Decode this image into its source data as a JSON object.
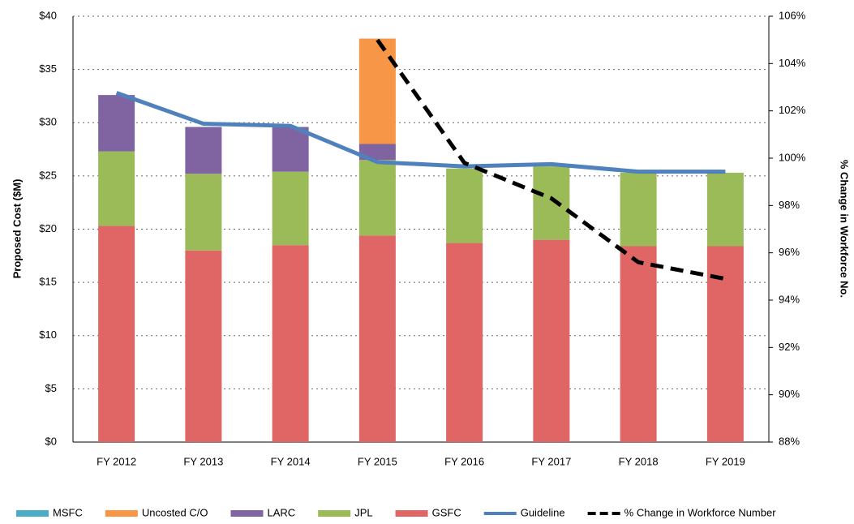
{
  "chart_data": {
    "type": "bar",
    "categories": [
      "FY 2012",
      "FY 2013",
      "FY 2014",
      "FY 2015",
      "FY 2016",
      "FY 2017",
      "FY 2018",
      "FY 2019"
    ],
    "y_label": "Proposed Cost ($M)",
    "y2_label": "% Change in Workforce No.",
    "ylim": [
      0,
      40
    ],
    "yticks": [
      {
        "value": 0,
        "label": "$0"
      },
      {
        "value": 5,
        "label": "$5"
      },
      {
        "value": 10,
        "label": "$10"
      },
      {
        "value": 15,
        "label": "$15"
      },
      {
        "value": 20,
        "label": "$20"
      },
      {
        "value": 25,
        "label": "$25"
      },
      {
        "value": 30,
        "label": "$30"
      },
      {
        "value": 35,
        "label": "$35"
      },
      {
        "value": 40,
        "label": "$40"
      }
    ],
    "y2lim": [
      88,
      106
    ],
    "y2ticks": [
      {
        "value": 88,
        "label": "88%"
      },
      {
        "value": 90,
        "label": "90%"
      },
      {
        "value": 92,
        "label": "92%"
      },
      {
        "value": 94,
        "label": "94%"
      },
      {
        "value": 96,
        "label": "96%"
      },
      {
        "value": 98,
        "label": "98%"
      },
      {
        "value": 100,
        "label": "100%"
      },
      {
        "value": 102,
        "label": "102%"
      },
      {
        "value": 104,
        "label": "104%"
      },
      {
        "value": 106,
        "label": "106%"
      }
    ],
    "grid": true,
    "legend": "bottom",
    "series": [
      {
        "name": "MSFC",
        "kind": "bar",
        "color": "#4bacc6",
        "values": [
          0,
          0,
          0,
          0,
          0,
          0,
          0,
          0
        ]
      },
      {
        "name": "Uncosted C/O",
        "kind": "bar",
        "color": "#f79646",
        "values": [
          0,
          0,
          0,
          9.9,
          0,
          0,
          0,
          0
        ]
      },
      {
        "name": "LARC",
        "kind": "bar",
        "color": "#8064a2",
        "values": [
          5.3,
          4.4,
          4.2,
          1.5,
          0,
          0,
          0,
          0
        ]
      },
      {
        "name": "JPL",
        "kind": "bar",
        "color": "#9bbb59",
        "values": [
          7.0,
          7.2,
          6.9,
          7.1,
          7.0,
          6.9,
          6.9,
          6.9
        ]
      },
      {
        "name": "GSFC",
        "kind": "bar",
        "color": "#e06666",
        "values": [
          20.3,
          18.0,
          18.5,
          19.4,
          18.7,
          19.0,
          18.4,
          18.4
        ]
      },
      {
        "name": "Guideline",
        "kind": "line",
        "color": "#4f81bd",
        "values": [
          32.8,
          29.9,
          29.7,
          26.3,
          25.9,
          26.1,
          25.4,
          25.4
        ]
      },
      {
        "name": "% Change in Workforce Number",
        "kind": "line",
        "axis": "y2",
        "linestyle": "dashed",
        "color": "#000000",
        "values": [
          null,
          null,
          null,
          105.0,
          99.8,
          98.3,
          95.6,
          94.9
        ]
      }
    ]
  }
}
